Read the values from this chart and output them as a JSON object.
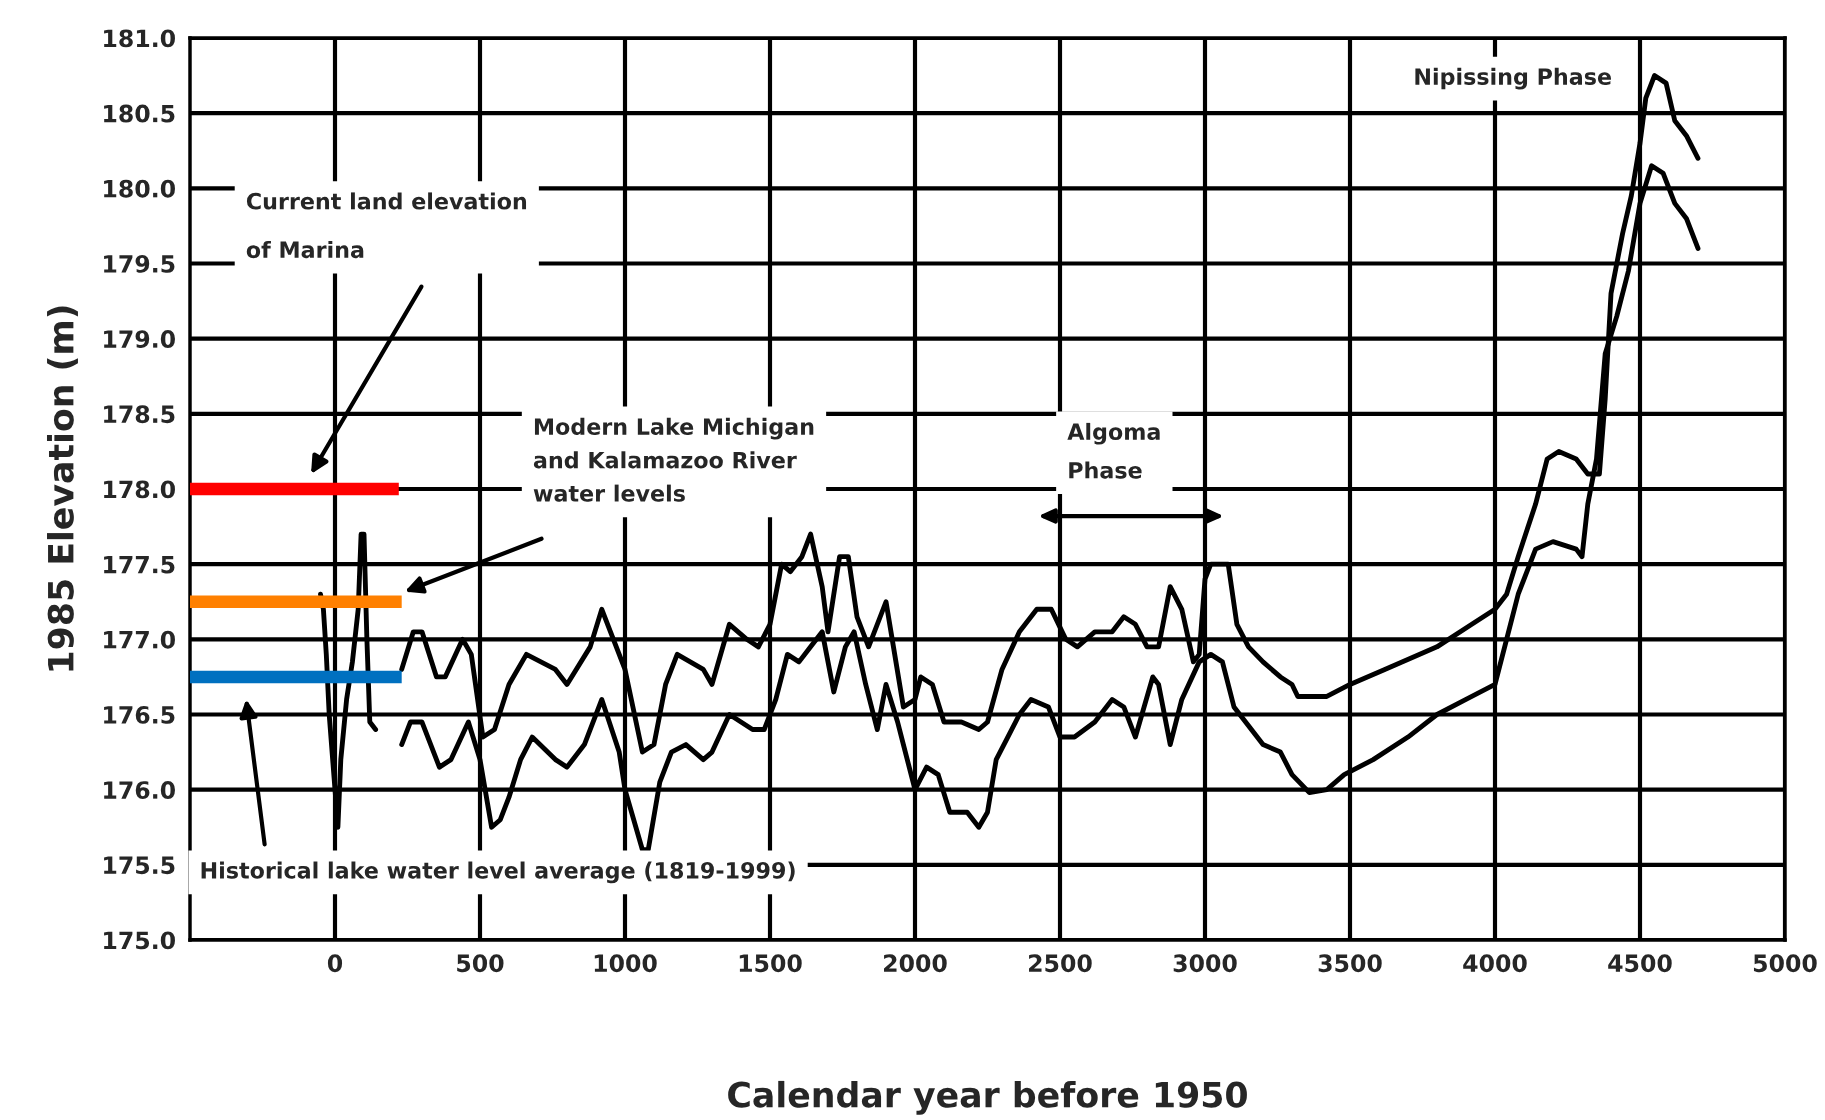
{
  "chart_data": {
    "type": "line",
    "xlabel": "Calendar year before 1950",
    "ylabel": "1985 Elevation (m)",
    "xlim": [
      -500,
      5000
    ],
    "ylim": [
      175.0,
      181.0
    ],
    "xticks": [
      0,
      500,
      1000,
      1500,
      2000,
      2500,
      3000,
      3500,
      4000,
      4500,
      5000
    ],
    "yticks": [
      {
        "value": 175.0,
        "label": "175.0"
      },
      {
        "value": 175.5,
        "label": "175.5"
      },
      {
        "value": 176.0,
        "label": "176.0"
      },
      {
        "value": 176.5,
        "label": "176.5"
      },
      {
        "value": 177.0,
        "label": "177.0"
      },
      {
        "value": 177.5,
        "label": "177.5"
      },
      {
        "value": 178.0,
        "label": "178.0"
      },
      {
        "value": 178.5,
        "label": "178.5"
      },
      {
        "value": 179.0,
        "label": "179.0"
      },
      {
        "value": 179.5,
        "label": "179.5"
      },
      {
        "value": 180.0,
        "label": "180.0"
      },
      {
        "value": 180.5,
        "label": "180.5"
      },
      {
        "value": 181.0,
        "label": "181.0"
      }
    ],
    "grid": true,
    "legend": false,
    "marker": "none",
    "line_style": "solid",
    "series": [
      {
        "color": "#ff0000",
        "x": [
          -500,
          220
        ],
        "values": [
          178.0,
          178.0
        ]
      },
      {
        "color": "#ff8000",
        "x": [
          -500,
          230
        ],
        "values": [
          177.25,
          177.25
        ]
      },
      {
        "color": "#0070c0",
        "x": [
          -500,
          230
        ],
        "values": [
          176.75,
          176.75
        ]
      },
      {
        "color": "#000000",
        "x": [
          -50,
          -40,
          -30,
          -20,
          0,
          10,
          20,
          40,
          60,
          80,
          90,
          100,
          110,
          120,
          140
        ],
        "values": [
          177.3,
          177.2,
          176.9,
          176.5,
          176.0,
          175.75,
          176.2,
          176.6,
          176.85,
          177.2,
          177.7,
          177.7,
          177.0,
          176.45,
          176.4
        ]
      },
      {
        "color": "#000000",
        "x": [
          230,
          270,
          300,
          350,
          380,
          440,
          470,
          510,
          550,
          600,
          660,
          760,
          800,
          880,
          920,
          960,
          1000,
          1060,
          1100,
          1140,
          1180,
          1270,
          1300,
          1360,
          1420,
          1460,
          1500,
          1540,
          1570,
          1610,
          1640,
          1680,
          1700,
          1740,
          1770,
          1800,
          1840,
          1900,
          1960,
          2000,
          2020,
          2060,
          2100,
          2160,
          2220,
          2250,
          2300,
          2360,
          2420,
          2470,
          2520,
          2560,
          2620,
          2680,
          2720,
          2760,
          2800,
          2840,
          2880,
          2920,
          2960,
          2980,
          3000,
          3020,
          3080,
          3110,
          3150,
          3200,
          3260,
          3300,
          3320,
          3420,
          3500,
          3620,
          3800,
          3920,
          4000,
          4040,
          4080,
          4140,
          4180,
          4220,
          4280,
          4320,
          4360,
          4380,
          4400,
          4440,
          4470,
          4500,
          4520,
          4550,
          4590,
          4620,
          4660,
          4700
        ],
        "values": [
          176.8,
          177.05,
          177.05,
          176.75,
          176.75,
          177.0,
          176.9,
          176.35,
          176.4,
          176.7,
          176.9,
          176.8,
          176.7,
          176.95,
          177.2,
          177.0,
          176.8,
          176.25,
          176.3,
          176.7,
          176.9,
          176.8,
          176.7,
          177.1,
          177.0,
          176.95,
          177.1,
          177.5,
          177.45,
          177.55,
          177.7,
          177.35,
          177.05,
          177.55,
          177.55,
          177.15,
          176.95,
          177.25,
          176.55,
          176.6,
          176.75,
          176.7,
          176.45,
          176.45,
          176.4,
          176.45,
          176.8,
          177.05,
          177.2,
          177.2,
          177.0,
          176.95,
          177.05,
          177.05,
          177.15,
          177.1,
          176.95,
          176.95,
          177.35,
          177.2,
          176.85,
          176.9,
          177.4,
          177.5,
          177.5,
          177.1,
          176.95,
          176.85,
          176.75,
          176.7,
          176.62,
          176.62,
          176.7,
          176.8,
          176.95,
          177.1,
          177.2,
          177.3,
          177.55,
          177.9,
          178.2,
          178.25,
          178.2,
          178.1,
          178.1,
          178.6,
          179.3,
          179.7,
          179.95,
          180.3,
          180.6,
          180.75,
          180.7,
          180.45,
          180.35,
          180.2
        ]
      },
      {
        "color": "#000000",
        "x": [
          230,
          260,
          300,
          360,
          400,
          460,
          500,
          540,
          570,
          600,
          640,
          680,
          760,
          800,
          860,
          920,
          980,
          1000,
          1060,
          1080,
          1120,
          1160,
          1210,
          1270,
          1300,
          1360,
          1400,
          1440,
          1480,
          1520,
          1560,
          1600,
          1640,
          1680,
          1720,
          1760,
          1790,
          1830,
          1870,
          1900,
          1940,
          1960,
          2000,
          2040,
          2080,
          2120,
          2180,
          2220,
          2250,
          2280,
          2320,
          2360,
          2400,
          2460,
          2500,
          2550,
          2620,
          2680,
          2720,
          2760,
          2820,
          2840,
          2880,
          2920,
          2980,
          3020,
          3060,
          3100,
          3140,
          3200,
          3260,
          3300,
          3360,
          3420,
          3480,
          3580,
          3700,
          3800,
          3900,
          4000,
          4040,
          4080,
          4140,
          4200,
          4280,
          4300,
          4320,
          4350,
          4380,
          4420,
          4460,
          4500,
          4540,
          4580,
          4620,
          4660,
          4700
        ],
        "values": [
          176.3,
          176.45,
          176.45,
          176.15,
          176.2,
          176.45,
          176.2,
          175.75,
          175.8,
          175.95,
          176.2,
          176.35,
          176.2,
          176.15,
          176.3,
          176.6,
          176.25,
          176.0,
          175.6,
          175.6,
          176.05,
          176.25,
          176.3,
          176.2,
          176.25,
          176.5,
          176.45,
          176.4,
          176.4,
          176.6,
          176.9,
          176.85,
          176.95,
          177.05,
          176.65,
          176.95,
          177.05,
          176.7,
          176.4,
          176.7,
          176.45,
          176.3,
          176.0,
          176.15,
          176.1,
          175.85,
          175.85,
          175.75,
          175.85,
          176.2,
          176.35,
          176.5,
          176.6,
          176.55,
          176.35,
          176.35,
          176.45,
          176.6,
          176.55,
          176.35,
          176.75,
          176.7,
          176.3,
          176.6,
          176.85,
          176.9,
          176.85,
          176.55,
          176.45,
          176.3,
          176.25,
          176.1,
          175.98,
          176.0,
          176.1,
          176.2,
          176.35,
          176.5,
          176.6,
          176.7,
          177.0,
          177.3,
          177.6,
          177.65,
          177.6,
          177.55,
          177.9,
          178.2,
          178.9,
          179.15,
          179.45,
          179.9,
          180.15,
          180.1,
          179.9,
          179.8,
          179.6
        ]
      }
    ],
    "annotations": [
      "Current land elevation\nof Marina",
      "Modern Lake Michigan\nand Kalamazoo River\nwater levels",
      "Historical lake water level average (1819-1999)",
      "Algoma\nPhase",
      "Nipissing Phase"
    ]
  }
}
